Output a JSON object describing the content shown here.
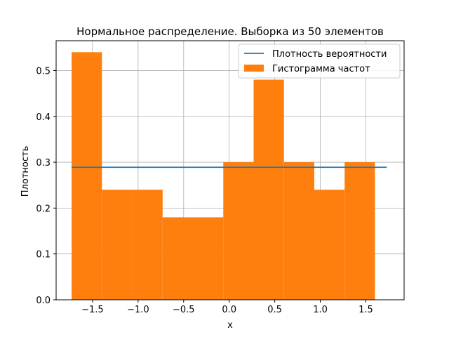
{
  "chart_data": {
    "type": "bar",
    "title": "Нормальное распределение. Выборка из 50 элементов",
    "xlabel": "x",
    "ylabel": "Плотность",
    "xlim": [
      -1.9,
      1.92
    ],
    "ylim": [
      0,
      0.565
    ],
    "grid": true,
    "legend_position": "top-right",
    "x_ticks": [
      -1.5,
      -1.0,
      -0.5,
      0.0,
      0.5,
      1.0,
      1.5
    ],
    "x_tick_labels": [
      "−1.5",
      "−1.0",
      "−0.5",
      "0.0",
      "0.5",
      "1.0",
      "1.5"
    ],
    "y_ticks": [
      0.0,
      0.1,
      0.2,
      0.3,
      0.4,
      0.5
    ],
    "y_tick_labels": [
      "0.0",
      "0.1",
      "0.2",
      "0.3",
      "0.4",
      "0.5"
    ],
    "series": [
      {
        "name": "Плотность вероятности",
        "kind": "line",
        "color": "#1f77b4",
        "x": [
          -1.73,
          1.73
        ],
        "y": [
          0.289,
          0.289
        ]
      },
      {
        "name": "Гистограмма частот",
        "kind": "histogram",
        "color": "#ff7f0e",
        "bin_edges": [
          -1.73,
          -1.397,
          -1.064,
          -0.731,
          -0.398,
          -0.065,
          0.268,
          0.601,
          0.934,
          1.267,
          1.6
        ],
        "values": [
          0.54,
          0.24,
          0.24,
          0.18,
          0.18,
          0.3,
          0.48,
          0.3,
          0.24,
          0.3
        ]
      }
    ]
  }
}
